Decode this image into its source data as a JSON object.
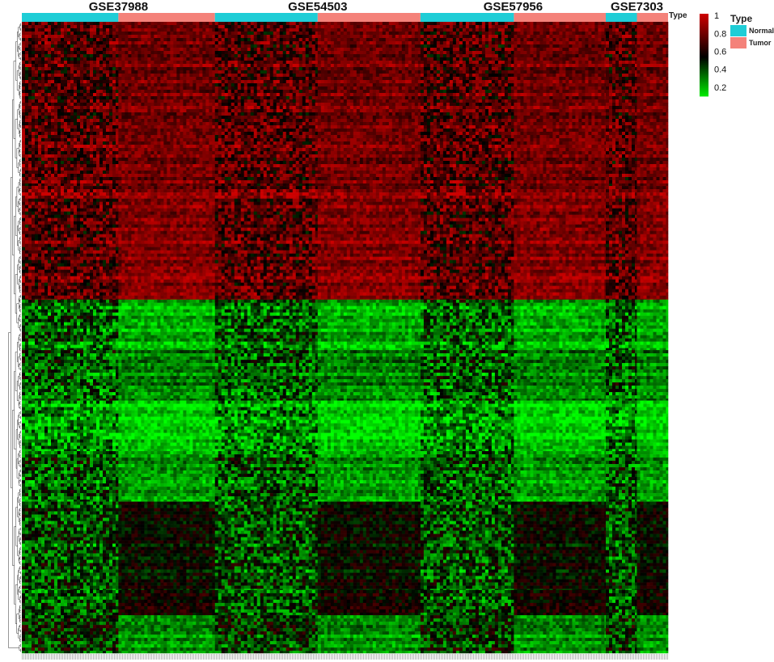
{
  "chart_data": {
    "type": "heatmap",
    "title": "",
    "xlabel": "",
    "ylabel": "",
    "value_range": [
      0,
      1
    ],
    "colorbar": {
      "ticks": [
        1,
        0.8,
        0.6,
        0.4,
        0.2
      ],
      "tick_labels": [
        "1",
        "0.8",
        "0.6",
        "0.4",
        "0.2"
      ],
      "colors": {
        "low": "#00ff00",
        "mid": "#000000",
        "high": "#cc0000"
      }
    },
    "annotation_track": {
      "name": "Type",
      "categories": [
        "Normal",
        "Tumor"
      ],
      "colors": {
        "Normal": "#1fcdd6",
        "Tumor": "#f4827a"
      }
    },
    "datasets": [
      {
        "name": "GSE37988",
        "groups": [
          {
            "type": "Normal",
            "samples": 62
          },
          {
            "type": "Tumor",
            "samples": 62
          }
        ]
      },
      {
        "name": "GSE54503",
        "groups": [
          {
            "type": "Normal",
            "samples": 66
          },
          {
            "type": "Tumor",
            "samples": 66
          }
        ]
      },
      {
        "name": "GSE57956",
        "groups": [
          {
            "type": "Normal",
            "samples": 60
          },
          {
            "type": "Tumor",
            "samples": 59
          }
        ]
      },
      {
        "name": "GSE7303",
        "groups": [
          {
            "type": "Normal",
            "samples": 20
          },
          {
            "type": "Tumor",
            "samples": 20
          }
        ]
      }
    ],
    "row_blocks": [
      {
        "feature_share": 0.26,
        "normal_level": 0.7,
        "tumor_level": 0.78
      },
      {
        "feature_share": 0.02,
        "normal_level": 0.8,
        "tumor_level": 0.8
      },
      {
        "feature_share": 0.16,
        "normal_level": 0.72,
        "tumor_level": 0.84
      },
      {
        "feature_share": 0.08,
        "normal_level": 0.3,
        "tumor_level": 0.15
      },
      {
        "feature_share": 0.08,
        "normal_level": 0.33,
        "tumor_level": 0.25
      },
      {
        "feature_share": 0.08,
        "normal_level": 0.2,
        "tumor_level": 0.08
      },
      {
        "feature_share": 0.08,
        "normal_level": 0.33,
        "tumor_level": 0.2
      },
      {
        "feature_share": 0.14,
        "normal_level": 0.35,
        "tumor_level": 0.5
      },
      {
        "feature_share": 0.04,
        "normal_level": 0.35,
        "tumor_level": 0.55
      },
      {
        "feature_share": 0.06,
        "normal_level": 0.4,
        "tumor_level": 0.22
      }
    ],
    "dendrograms": {
      "rows": true,
      "columns": false
    }
  }
}
